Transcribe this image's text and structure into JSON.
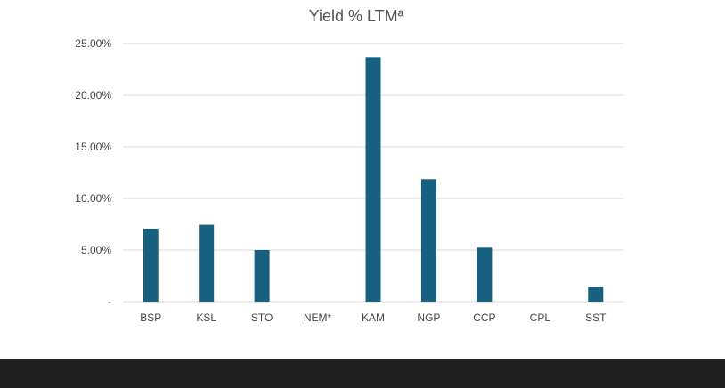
{
  "chart_data": {
    "type": "bar",
    "title": "Yield % LTMª",
    "xlabel": "",
    "ylabel": "",
    "categories": [
      "BSP",
      "KSL",
      "STO",
      "NEM*",
      "KAM",
      "NGP",
      "CCP",
      "CPL",
      "SST"
    ],
    "values": [
      7.07,
      7.45,
      5.0,
      0,
      23.68,
      11.87,
      5.23,
      0,
      1.44
    ],
    "ylim": [
      0,
      25
    ],
    "yticks": [
      0,
      5,
      10,
      15,
      20,
      25
    ],
    "ytick_labels": [
      "-",
      "5.00%",
      "10.00%",
      "15.00%",
      "20.00%",
      "25.00%"
    ],
    "grid": true,
    "legend": "none",
    "bar_color": "#17607f"
  }
}
